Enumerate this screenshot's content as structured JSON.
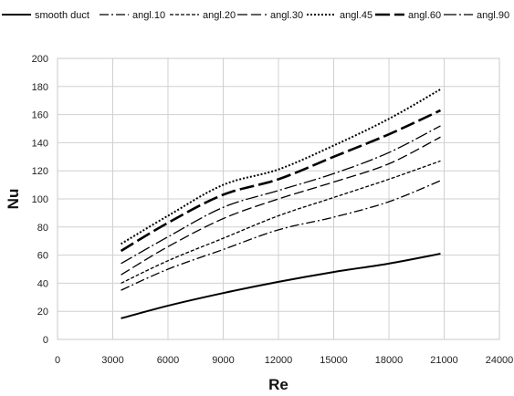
{
  "chart_data": {
    "type": "line",
    "title": "",
    "xlabel": "Re",
    "ylabel": "Nu",
    "xlim": [
      0,
      24000
    ],
    "ylim": [
      0,
      200
    ],
    "xticks": [
      0,
      3000,
      6000,
      9000,
      12000,
      15000,
      18000,
      21000,
      24000
    ],
    "yticks": [
      0,
      20,
      40,
      60,
      80,
      100,
      120,
      140,
      160,
      180,
      200
    ],
    "grid": true,
    "legend_position": "top",
    "series": [
      {
        "name": "smooth duct",
        "style": "solid",
        "width": 2.0,
        "points": [
          [
            3450,
            15
          ],
          [
            6000,
            24
          ],
          [
            9000,
            33
          ],
          [
            12000,
            41
          ],
          [
            15000,
            48
          ],
          [
            18000,
            54
          ],
          [
            20800,
            61
          ]
        ]
      },
      {
        "name": "angl.10",
        "style": "dashdot",
        "width": 1.3,
        "points": [
          [
            3450,
            35
          ],
          [
            6000,
            50
          ],
          [
            9000,
            64
          ],
          [
            12000,
            78
          ],
          [
            15000,
            87
          ],
          [
            18000,
            98
          ],
          [
            20800,
            113
          ]
        ]
      },
      {
        "name": "angl.20",
        "style": "shortdash",
        "width": 1.3,
        "points": [
          [
            3450,
            40
          ],
          [
            6000,
            56
          ],
          [
            9000,
            72
          ],
          [
            12000,
            88
          ],
          [
            15000,
            101
          ],
          [
            18000,
            114
          ],
          [
            20800,
            127
          ]
        ]
      },
      {
        "name": "angl.30",
        "style": "longdash",
        "width": 1.3,
        "points": [
          [
            3450,
            46
          ],
          [
            6000,
            66
          ],
          [
            9000,
            86
          ],
          [
            12000,
            100
          ],
          [
            15000,
            112
          ],
          [
            18000,
            125
          ],
          [
            20800,
            144
          ]
        ]
      },
      {
        "name": "angl.45",
        "style": "dotted",
        "width": 2.0,
        "points": [
          [
            3450,
            68
          ],
          [
            6000,
            88
          ],
          [
            9000,
            110
          ],
          [
            12000,
            121
          ],
          [
            15000,
            138
          ],
          [
            18000,
            157
          ],
          [
            20800,
            178
          ]
        ]
      },
      {
        "name": "angl.60",
        "style": "heavydash",
        "width": 2.6,
        "points": [
          [
            3450,
            63
          ],
          [
            6000,
            83
          ],
          [
            9000,
            103
          ],
          [
            12000,
            114
          ],
          [
            15000,
            130
          ],
          [
            18000,
            146
          ],
          [
            20800,
            163
          ]
        ]
      },
      {
        "name": "angl.90",
        "style": "dashdotlong",
        "width": 1.3,
        "points": [
          [
            3450,
            54
          ],
          [
            6000,
            73
          ],
          [
            9000,
            94
          ],
          [
            12000,
            106
          ],
          [
            15000,
            118
          ],
          [
            18000,
            133
          ],
          [
            20800,
            152
          ]
        ]
      }
    ]
  }
}
